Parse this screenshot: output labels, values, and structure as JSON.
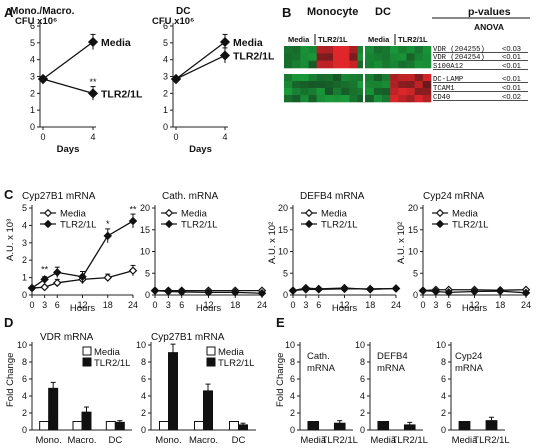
{
  "panel_letters": [
    "A",
    "B",
    "C",
    "D",
    "E"
  ],
  "chart_data": [
    {
      "id": "A1",
      "type": "line",
      "title": "Mono./Macro.",
      "ylabel": "CFU x10⁶",
      "xlabel": "Days",
      "x": [
        0,
        4
      ],
      "ylim": [
        0,
        6
      ],
      "yticks": [
        0,
        1,
        2,
        3,
        4,
        5,
        6
      ],
      "xticks": [
        0,
        4
      ],
      "series": [
        {
          "name": "Media",
          "values": [
            2.85,
            5.05
          ],
          "errors": [
            0,
            0.45
          ],
          "marker": "diamond-filled"
        },
        {
          "name": "TLR2/1L",
          "values": [
            2.85,
            2.0
          ],
          "errors": [
            0,
            0.4
          ],
          "marker": "diamond-filled"
        }
      ],
      "annotations": [
        {
          "text": "**",
          "x": 4,
          "y": 2.5
        }
      ]
    },
    {
      "id": "A2",
      "type": "line",
      "title": "DC",
      "ylabel": "CFU x10⁶",
      "xlabel": "Days",
      "x": [
        0,
        4
      ],
      "ylim": [
        0,
        6
      ],
      "yticks": [
        0,
        1,
        2,
        3,
        4,
        5,
        6
      ],
      "xticks": [
        0,
        4
      ],
      "series": [
        {
          "name": "Media",
          "values": [
            2.85,
            5.05
          ],
          "errors": [
            0,
            0.45
          ],
          "marker": "diamond-filled"
        },
        {
          "name": "TLR2/1L",
          "values": [
            2.85,
            4.25
          ],
          "errors": [
            0,
            0.45
          ],
          "marker": "diamond-filled"
        }
      ],
      "annotations": []
    },
    {
      "id": "C1",
      "type": "line",
      "title": "Cyp27B1 mRNA",
      "ylabel": "A.U. x 10³",
      "xlabel": "Hours",
      "x": [
        0,
        3,
        6,
        12,
        18,
        24
      ],
      "ylim": [
        0,
        5
      ],
      "yticks": [
        0,
        1,
        2,
        3,
        4,
        5
      ],
      "xticks": [
        0,
        3,
        6,
        12,
        18,
        24
      ],
      "legend_position": "top-left",
      "series": [
        {
          "name": "Media",
          "values": [
            0.4,
            0.45,
            0.7,
            0.9,
            1.0,
            1.4
          ],
          "errors": [
            0,
            0.05,
            0.2,
            0.25,
            0.2,
            0.3
          ],
          "marker": "diamond-open"
        },
        {
          "name": "TLR2/1L",
          "values": [
            0.4,
            0.9,
            1.3,
            1.05,
            3.4,
            4.25
          ],
          "errors": [
            0,
            0.15,
            0.3,
            0.3,
            0.4,
            0.4
          ],
          "marker": "diamond-filled"
        }
      ],
      "annotations": [
        {
          "text": "**",
          "x": 3,
          "y": 1.3
        },
        {
          "text": "*",
          "x": 18,
          "y": 3.9
        },
        {
          "text": "**",
          "x": 24,
          "y": 4.75
        }
      ]
    },
    {
      "id": "C2",
      "type": "line",
      "title": "Cath. mRNA",
      "ylabel": "",
      "xlabel": "Hours",
      "x": [
        0,
        3,
        6,
        12,
        18,
        24
      ],
      "ylim": [
        0,
        20
      ],
      "yticks": [
        0,
        5,
        10,
        15,
        20
      ],
      "xticks": [
        0,
        3,
        6,
        12,
        18,
        24
      ],
      "legend_position": "top-left",
      "series": [
        {
          "name": "Media",
          "values": [
            1,
            1,
            1,
            1,
            1,
            1
          ],
          "errors": [
            0,
            0.3,
            0.3,
            0.3,
            0.3,
            0.3
          ],
          "marker": "diamond-open"
        },
        {
          "name": "TLR2/1L",
          "values": [
            1,
            0.8,
            0.7,
            0.6,
            0.6,
            0.4
          ],
          "errors": [
            0,
            0.3,
            0.3,
            0.3,
            0.3,
            0.3
          ],
          "marker": "diamond-filled"
        }
      ],
      "annotations": []
    },
    {
      "id": "C3",
      "type": "line",
      "title": "DEFB4 mRNA",
      "ylabel": "A.U. x 10²",
      "xlabel": "Hours",
      "x": [
        0,
        3,
        6,
        12,
        18,
        24
      ],
      "ylim": [
        0,
        20
      ],
      "yticks": [
        0,
        5,
        10,
        15,
        20
      ],
      "xticks": [
        0,
        3,
        6,
        12,
        18,
        24
      ],
      "legend_position": "top-left",
      "series": [
        {
          "name": "Media",
          "values": [
            1,
            1.3,
            1.3,
            1.4,
            1.4,
            1.5
          ],
          "errors": [
            0,
            0.3,
            0.3,
            0.3,
            0.3,
            0.3
          ],
          "marker": "diamond-open"
        },
        {
          "name": "TLR2/1L",
          "values": [
            1,
            1.6,
            1.4,
            1.6,
            1.3,
            1.5
          ],
          "errors": [
            0,
            0.3,
            0.3,
            0.3,
            0.3,
            0.3
          ],
          "marker": "diamond-filled"
        }
      ],
      "annotations": []
    },
    {
      "id": "C4",
      "type": "line",
      "title": "Cyp24 mRNA",
      "ylabel": "A.U. x 10²",
      "xlabel": "Hours",
      "x": [
        0,
        3,
        6,
        12,
        18,
        24
      ],
      "ylim": [
        0,
        20
      ],
      "yticks": [
        0,
        5,
        10,
        15,
        20
      ],
      "xticks": [
        0,
        3,
        6,
        12,
        18,
        24
      ],
      "legend_position": "top-left",
      "series": [
        {
          "name": "Media",
          "values": [
            1,
            1.2,
            1.2,
            1.2,
            1.1,
            1.2
          ],
          "errors": [
            0,
            0.3,
            0.3,
            0.3,
            0.3,
            0.3
          ],
          "marker": "diamond-open"
        },
        {
          "name": "TLR2/1L",
          "values": [
            1,
            0.8,
            0.6,
            0.8,
            0.9,
            0.5
          ],
          "errors": [
            0,
            0.3,
            0.3,
            0.3,
            0.3,
            0.3
          ],
          "marker": "diamond-filled"
        }
      ],
      "annotations": []
    },
    {
      "id": "D1",
      "type": "bar",
      "title": "VDR mRNA",
      "ylabel": "Fold Change",
      "categories": [
        "Mono.",
        "Macro.",
        "DC"
      ],
      "ylim": [
        0,
        10
      ],
      "yticks": [
        0,
        2,
        4,
        6,
        8,
        10
      ],
      "legend_position": "top-right",
      "series": [
        {
          "name": "Media",
          "values": [
            1,
            1,
            1
          ],
          "errors": [
            0,
            0,
            0
          ],
          "fill": "#ffffff"
        },
        {
          "name": "TLR2/1L",
          "values": [
            4.9,
            2.1,
            0.9
          ],
          "errors": [
            0.7,
            0.6,
            0.2
          ],
          "fill": "#111111"
        }
      ]
    },
    {
      "id": "D2",
      "type": "bar",
      "title": "Cyp27B1 mRNA",
      "ylabel": "",
      "categories": [
        "Mono.",
        "Macro.",
        "DC"
      ],
      "ylim": [
        0,
        10
      ],
      "yticks": [
        0,
        2,
        4,
        6,
        8,
        10
      ],
      "legend_position": "top-right",
      "series": [
        {
          "name": "Media",
          "values": [
            1,
            1,
            1
          ],
          "errors": [
            0,
            0,
            0
          ],
          "fill": "#ffffff"
        },
        {
          "name": "TLR2/1L",
          "values": [
            9.1,
            4.6,
            0.6
          ],
          "errors": [
            1.0,
            0.8,
            0.2
          ],
          "fill": "#111111"
        }
      ]
    },
    {
      "id": "E1",
      "type": "bar",
      "title": "Cath. mRNA",
      "ylabel": "Fold Change",
      "categories": [
        "Media",
        "TLR2/1L"
      ],
      "ylim": [
        0,
        10
      ],
      "yticks": [
        0,
        2,
        4,
        6,
        8,
        10
      ],
      "series": [
        {
          "name": "",
          "values": [
            1,
            0.8
          ],
          "errors": [
            0,
            0.3
          ],
          "fill": "#111111"
        }
      ]
    },
    {
      "id": "E2",
      "type": "bar",
      "title": "DEFB4 mRNA",
      "ylabel": "",
      "categories": [
        "Media",
        "TLR2/1L"
      ],
      "ylim": [
        0,
        10
      ],
      "yticks": [
        0,
        2,
        4,
        6,
        8,
        10
      ],
      "series": [
        {
          "name": "",
          "values": [
            1,
            0.6
          ],
          "errors": [
            0,
            0.3
          ],
          "fill": "#111111"
        }
      ]
    },
    {
      "id": "E3",
      "type": "bar",
      "title": "Cyp24 mRNA",
      "ylabel": "",
      "categories": [
        "Media",
        "TLR2/1L"
      ],
      "ylim": [
        0,
        10
      ],
      "yticks": [
        0,
        2,
        4,
        6,
        8,
        10
      ],
      "series": [
        {
          "name": "",
          "values": [
            1,
            1.1
          ],
          "errors": [
            0,
            0.4
          ],
          "fill": "#111111"
        }
      ]
    }
  ],
  "heatmap": {
    "group_labels": [
      "Monocyte",
      "DC"
    ],
    "condition_labels": [
      "Media",
      "TLR2/1L",
      "Media",
      "TLR2/1L"
    ],
    "pvalue_header": "p-values",
    "pvalue_subheader": "ANOVA",
    "genes": [
      "VDR (204255)",
      "VDR (204254)",
      "S100A12",
      "DC-LAMP",
      "TCAM1",
      "CD40"
    ],
    "pvalues": [
      "<0.03",
      "<0.01",
      "<0.01",
      "<0.01",
      "<0.01",
      "<0.02"
    ],
    "colors": {
      "red": "#e0262a",
      "green": "#1a9a3a",
      "black": "#111111"
    }
  }
}
